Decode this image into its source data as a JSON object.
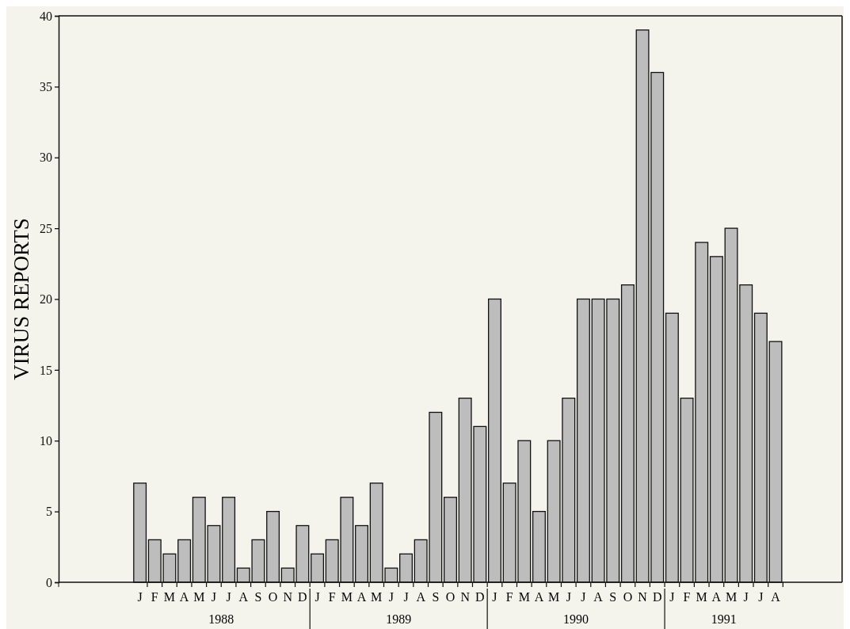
{
  "chart_data": {
    "type": "bar",
    "ylabel": "VIRUS REPORTS",
    "categories": [
      null,
      null,
      null,
      null,
      null,
      "J",
      "F",
      "M",
      "A",
      "M",
      "J",
      "J",
      "A",
      "S",
      "O",
      "N",
      "D",
      "J",
      "F",
      "M",
      "A",
      "M",
      "J",
      "J",
      "A",
      "S",
      "O",
      "N",
      "D",
      "J",
      "F",
      "M",
      "A",
      "M",
      "J",
      "J",
      "A",
      "S",
      "O",
      "N",
      "D",
      "J",
      "F",
      "M",
      "A",
      "M",
      "J",
      "J",
      "A",
      null,
      null,
      null,
      null
    ],
    "values": [
      null,
      null,
      null,
      null,
      null,
      7,
      3,
      2,
      3,
      6,
      4,
      6,
      1,
      3,
      5,
      1,
      4,
      2,
      3,
      6,
      4,
      7,
      1,
      2,
      3,
      12,
      6,
      13,
      11,
      20,
      7,
      10,
      5,
      10,
      13,
      20,
      20,
      20,
      21,
      39,
      36,
      19,
      13,
      24,
      23,
      25,
      21,
      19,
      17,
      null,
      null,
      null,
      null
    ],
    "color": "#bdbdbd",
    "ylim": [
      0,
      40
    ],
    "yticks": [
      0,
      5,
      10,
      15,
      20,
      25,
      30,
      35,
      40
    ],
    "annotations": [
      "1988",
      "1989",
      "1990",
      "1991"
    ]
  }
}
